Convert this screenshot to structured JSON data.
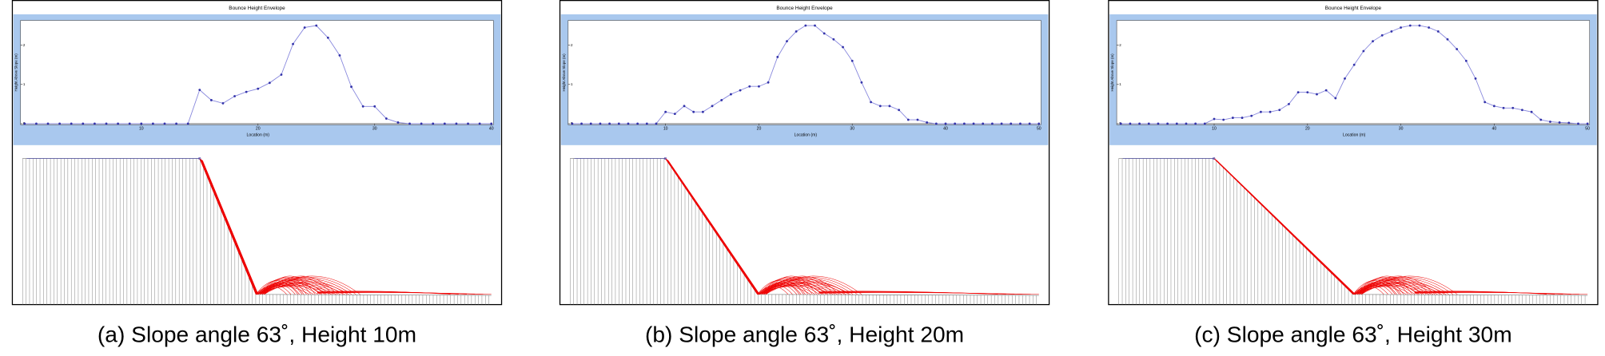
{
  "chart_data": [
    {
      "type": "line",
      "title": "Bounce Height Envelope",
      "x_label": "Location (m)",
      "y_label": "Height Above Slope (m)",
      "caption": "(a) Slope angle 63˚, Height 10m",
      "color": "#3333aa",
      "xlim": [
        0,
        40
      ],
      "xticks": [
        10,
        20,
        30,
        40
      ],
      "ylim": [
        0,
        2.5
      ],
      "yticks": [
        0,
        1,
        2
      ],
      "x": [
        0,
        1,
        2,
        3,
        4,
        5,
        6,
        7,
        8,
        9,
        10,
        11,
        12,
        13,
        14,
        15,
        16,
        17,
        18,
        19,
        20,
        21,
        22,
        23,
        24,
        25,
        26,
        27,
        28,
        29,
        30,
        31,
        32,
        33,
        34,
        35,
        36,
        37,
        38,
        39,
        40
      ],
      "values": [
        0,
        0,
        0,
        0,
        0,
        0,
        0,
        0,
        0,
        0,
        0,
        0,
        0,
        0,
        0,
        0.86,
        0.6,
        0.52,
        0.7,
        0.81,
        0.89,
        1.04,
        1.25,
        2.03,
        2.45,
        2.5,
        2.19,
        1.74,
        0.94,
        0.44,
        0.44,
        0.13,
        0.03,
        0,
        0,
        0,
        0,
        0,
        0,
        0,
        0
      ]
    },
    {
      "type": "line",
      "title": "Bounce Height Envelope",
      "x_label": "Location (m)",
      "y_label": "Height Above Slope (m)",
      "caption": "(b) Slope angle 63˚, Height 20m",
      "color": "#3333aa",
      "xlim": [
        0,
        50
      ],
      "xticks": [
        10,
        20,
        30,
        40,
        50
      ],
      "ylim": [
        0,
        2.5
      ],
      "yticks": [
        0,
        1,
        2
      ],
      "x": [
        0,
        1,
        2,
        3,
        4,
        5,
        6,
        7,
        8,
        9,
        10,
        11,
        12,
        13,
        14,
        15,
        16,
        17,
        18,
        19,
        20,
        21,
        22,
        23,
        24,
        25,
        26,
        27,
        28,
        29,
        30,
        31,
        32,
        33,
        34,
        35,
        36,
        37,
        38,
        39,
        40,
        41,
        42,
        43,
        44,
        45,
        46,
        47,
        48,
        49,
        50
      ],
      "values": [
        0,
        0,
        0,
        0,
        0,
        0,
        0,
        0,
        0,
        0,
        0.3,
        0.25,
        0.45,
        0.3,
        0.3,
        0.45,
        0.6,
        0.75,
        0.85,
        0.95,
        0.95,
        1.05,
        1.7,
        2.1,
        2.35,
        2.5,
        2.5,
        2.3,
        2.15,
        1.95,
        1.6,
        1.05,
        0.55,
        0.45,
        0.45,
        0.35,
        0.1,
        0.1,
        0.03,
        0,
        0,
        0,
        0,
        0,
        0,
        0,
        0,
        0,
        0,
        0,
        0
      ]
    },
    {
      "type": "line",
      "title": "Bounce Height Envelope",
      "x_label": "Location (m)",
      "y_label": "Height Above Slope (m)",
      "caption": "(c) Slope angle 63˚, Height 30m",
      "color": "#3333aa",
      "xlim": [
        0,
        50
      ],
      "xticks": [
        10,
        20,
        30,
        40,
        50
      ],
      "ylim": [
        0,
        2.5
      ],
      "yticks": [
        0,
        1,
        2
      ],
      "x": [
        0,
        1,
        2,
        3,
        4,
        5,
        6,
        7,
        8,
        9,
        10,
        11,
        12,
        13,
        14,
        15,
        16,
        17,
        18,
        19,
        20,
        21,
        22,
        23,
        24,
        25,
        26,
        27,
        28,
        29,
        30,
        31,
        32,
        33,
        34,
        35,
        36,
        37,
        38,
        39,
        40,
        41,
        42,
        43,
        44,
        45,
        46,
        47,
        48,
        49,
        50
      ],
      "values": [
        0,
        0,
        0,
        0,
        0,
        0,
        0,
        0,
        0,
        0,
        0.12,
        0.1,
        0.15,
        0.15,
        0.2,
        0.3,
        0.3,
        0.35,
        0.5,
        0.8,
        0.8,
        0.75,
        0.85,
        0.65,
        1.15,
        1.5,
        1.85,
        2.1,
        2.25,
        2.35,
        2.45,
        2.5,
        2.5,
        2.45,
        2.35,
        2.15,
        1.9,
        1.6,
        1.15,
        0.55,
        0.45,
        0.4,
        0.4,
        0.35,
        0.3,
        0.1,
        0.05,
        0.03,
        0.02,
        0,
        0
      ]
    }
  ]
}
